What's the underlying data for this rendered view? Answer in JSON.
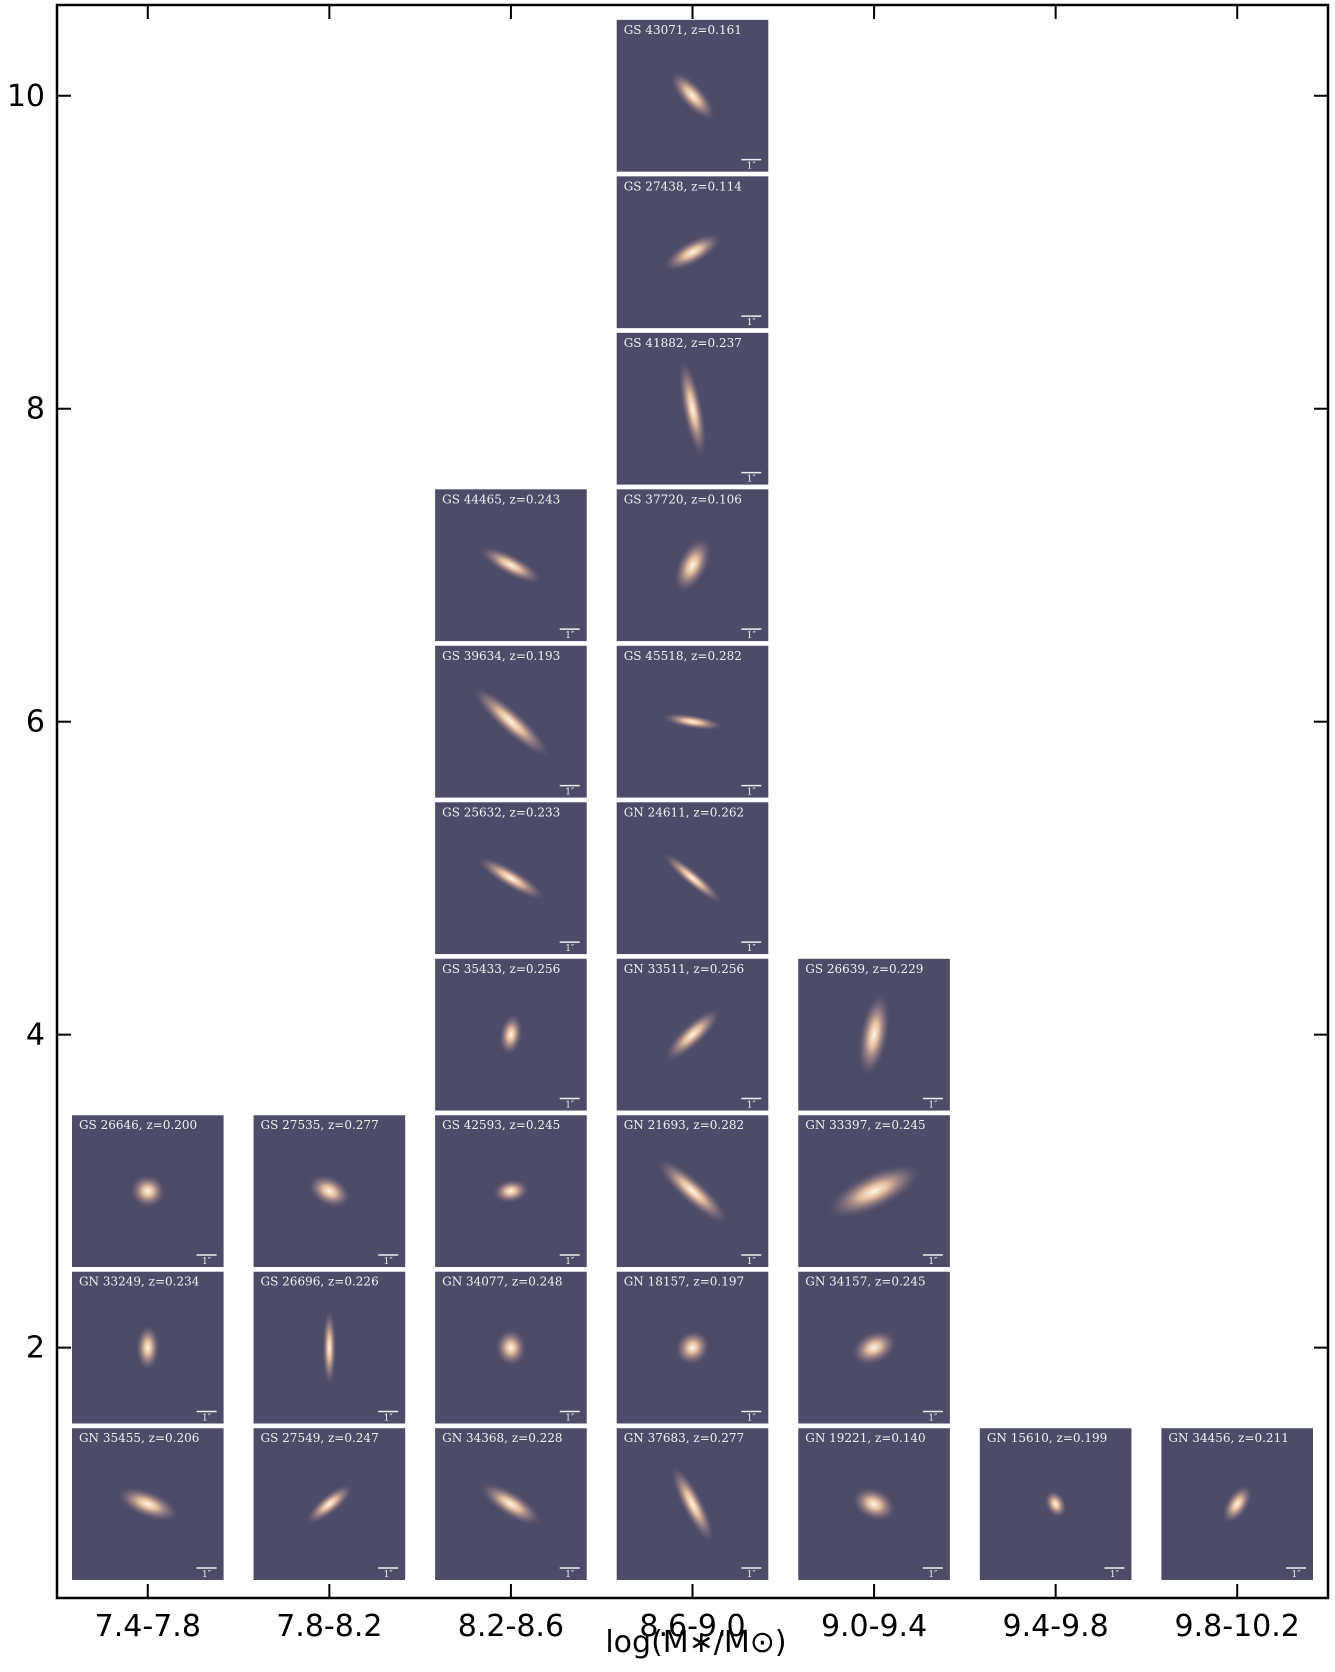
{
  "chart_data": {
    "type": "stack",
    "x_label": "log(M∗/M⊙)",
    "categories": [
      "7.4-7.8",
      "7.8-8.2",
      "8.2-8.6",
      "8.6-9.0",
      "9.0-9.4",
      "9.4-9.8",
      "9.8-10.2"
    ],
    "values": [
      3,
      3,
      7,
      10,
      4,
      1,
      1
    ],
    "galaxies": [
      [
        "GN 35455,  z=0.206",
        "GN 33249,  z=0.234",
        "GS 26646,  z=0.200"
      ],
      [
        "GS 27549,  z=0.247",
        "GS 26696,  z=0.226",
        "GS 27535,  z=0.277"
      ],
      [
        "GN 34368,  z=0.228",
        "GN 34077,  z=0.248",
        "GS 42593,  z=0.245",
        "GS 35433,  z=0.256",
        "GS 25632,  z=0.233",
        "GS 39634,  z=0.193",
        "GS 44465,  z=0.243"
      ],
      [
        "GN 37683,  z=0.277",
        "GN 18157,  z=0.197",
        "GN 21693,  z=0.282",
        "GN 33511,  z=0.256",
        "GN 24611,  z=0.262",
        "GS 45518,  z=0.282",
        "GS 37720,  z=0.106",
        "GS 41882,  z=0.237",
        "GS 27438,  z=0.114",
        "GS 43071,  z=0.161"
      ],
      [
        "GN 19221,  z=0.140",
        "GN 34157,  z=0.245",
        "GN 33397,  z=0.245",
        "GS 26639,  z=0.229"
      ],
      [
        "GN 15610,  z=0.199"
      ],
      [
        "GN 34456,  z=0.211"
      ]
    ],
    "scale_label": "1″",
    "ylim": [
      0.4,
      10.58
    ],
    "yticks": [
      2,
      4,
      6,
      8,
      10
    ]
  }
}
